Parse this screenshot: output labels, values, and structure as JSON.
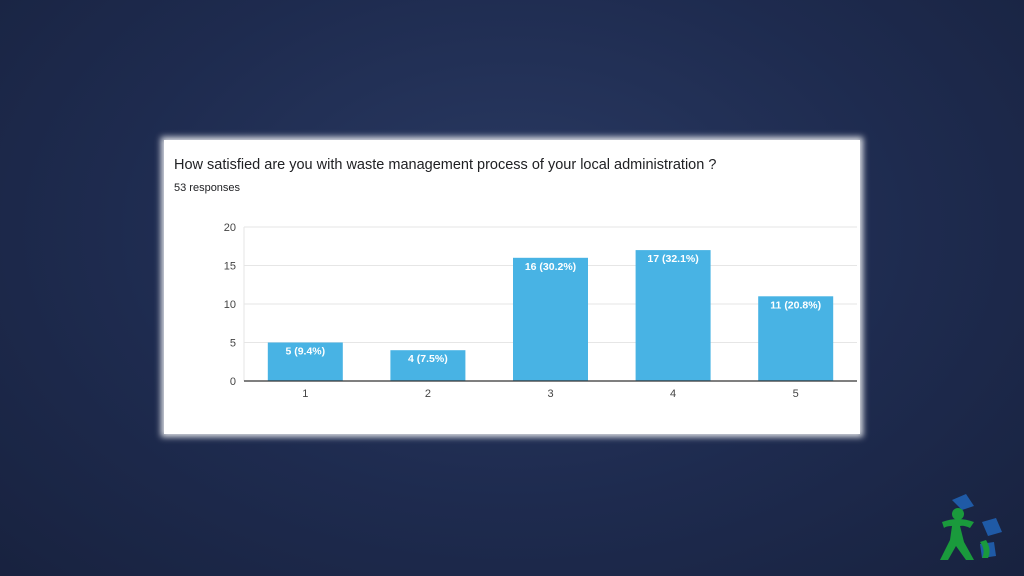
{
  "question": "How satisfied are you with waste management process of your local administration ?",
  "responses_label": "53 responses",
  "colors": {
    "bar": "#48b3e4",
    "grid": "#e6e6e6",
    "axis": "#333333",
    "tick_text": "#444444",
    "bar_label": "#ffffff"
  },
  "chart_data": {
    "type": "bar",
    "categories": [
      "1",
      "2",
      "3",
      "4",
      "5"
    ],
    "values": [
      5,
      4,
      16,
      17,
      11
    ],
    "data_labels": [
      "5 (9.4%)",
      "4 (7.5%)",
      "16 (30.2%)",
      "17 (32.1%)",
      "11 (20.8%)"
    ],
    "y_ticks": [
      "0",
      "5",
      "10",
      "15",
      "20"
    ],
    "ylim": [
      0,
      20
    ],
    "grid": true,
    "title": "How satisfied are you with waste management process of your local administration ?",
    "subtitle": "53 responses"
  },
  "logo": {
    "icon": "recycling-person-logo-icon",
    "colors": {
      "green": "#1a9a3c",
      "blue": "#1f5aa6"
    }
  }
}
